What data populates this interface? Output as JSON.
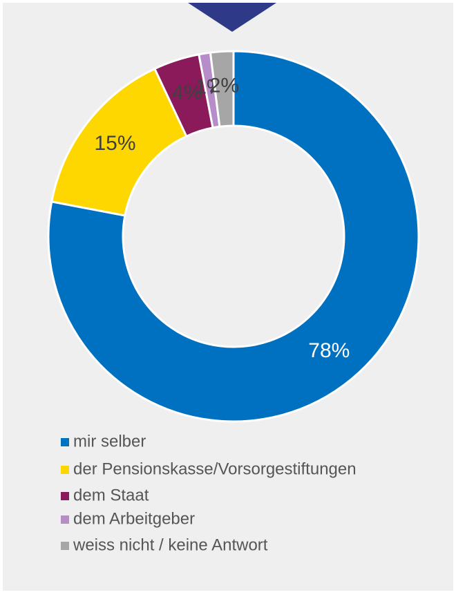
{
  "chart_data": {
    "type": "donut",
    "categories": [
      "mir selber",
      "der Pensionskasse/Vorsorgestiftungen",
      "dem Staat",
      "dem Arbeitgeber",
      "weiss nicht / keine Antwort"
    ],
    "values": [
      78,
      15,
      4,
      1,
      2
    ],
    "value_labels": [
      "78%",
      "15%",
      "4%",
      "1%",
      "2%"
    ],
    "colors": [
      "#0070c0",
      "#ffd700",
      "#8b1a5a",
      "#b68dc8",
      "#a6a6a6"
    ],
    "legend": "bottom"
  }
}
